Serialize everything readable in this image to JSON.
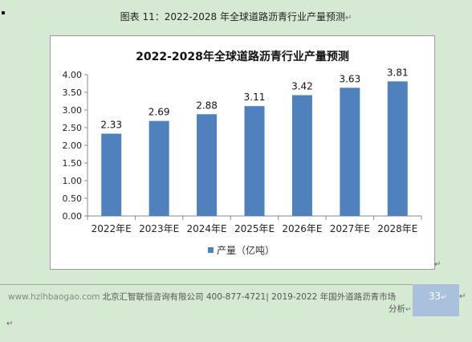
{
  "caption": "图表 11：2022-2028 年全球道路沥青行业产量预测",
  "chart_data": {
    "type": "bar",
    "title": "2022-2028年全球道路沥青行业产量预测",
    "categories": [
      "2022年E",
      "2023年E",
      "2024年E",
      "2025年E",
      "2026年E",
      "2027年E",
      "2028年E"
    ],
    "series": [
      {
        "name": "产量（亿吨）",
        "values": [
          2.33,
          2.69,
          2.88,
          3.11,
          3.42,
          3.63,
          3.81
        ]
      }
    ],
    "data_labels": [
      "2.33",
      "2.69",
      "2.88",
      "3.11",
      "3.42",
      "3.63",
      "3.81"
    ],
    "yticks": [
      "0.00",
      "0.50",
      "1.00",
      "1.50",
      "2.00",
      "2.50",
      "3.00",
      "3.50",
      "4.00"
    ],
    "ylim": [
      0,
      4
    ],
    "xlabel": "",
    "ylabel": "",
    "grid": false,
    "legend_position": "bottom",
    "bar_color": "#4f81bd"
  },
  "footer": {
    "site": "www.hzlhbaogao.com",
    "text": "北京汇智联恒咨询有限公司  400-877-4721| 2019-2022 年国外道路沥青市场",
    "text2": "分析",
    "page": "33"
  },
  "return_mark": "↵"
}
